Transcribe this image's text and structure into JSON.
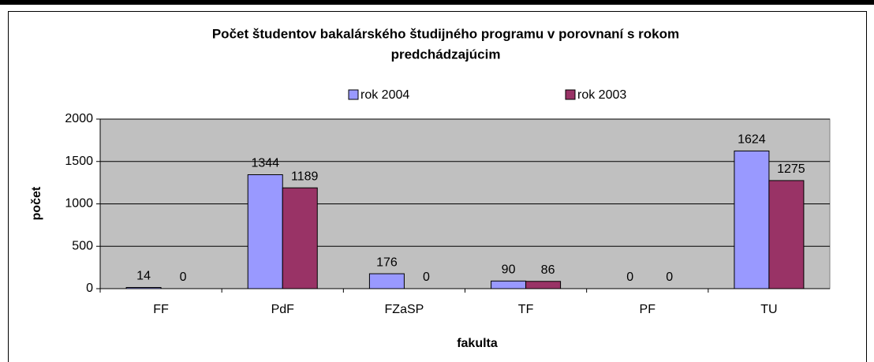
{
  "chart_data": {
    "type": "bar",
    "title": "Počet študentov bakalárského študijného programu v porovnaní s rokom predchádzajúcim",
    "title_lines": [
      "Počet študentov bakalárského študijného programu v porovnaní s rokom",
      "predchádzajúcim"
    ],
    "x_label": "fakulta",
    "y_label": "počet",
    "categories": [
      "FF",
      "PdF",
      "FZaSP",
      "TF",
      "PF",
      "TU"
    ],
    "series": [
      {
        "name": "rok 2004",
        "color": "#9999ff",
        "values": [
          14,
          1344,
          176,
          90,
          0,
          1624
        ]
      },
      {
        "name": "rok 2003",
        "color": "#993366",
        "values": [
          0,
          1189,
          0,
          86,
          0,
          1275
        ]
      }
    ],
    "ylim": [
      0,
      2000
    ],
    "yticks": [
      0,
      500,
      1000,
      1500,
      2000
    ],
    "grid": true,
    "legend": "top"
  }
}
